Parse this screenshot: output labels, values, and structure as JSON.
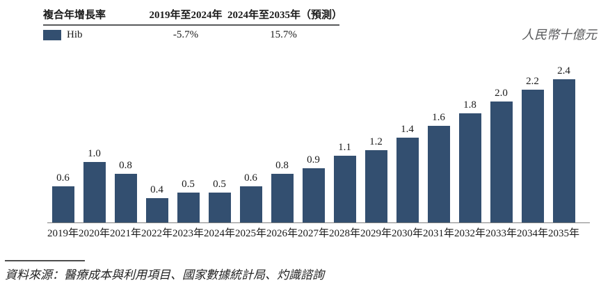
{
  "cagr_table": {
    "title": "複合年增長率",
    "col1": "2019年至2024年",
    "col2": "2024年至2035年（預測）",
    "series_label": "Hib",
    "value1": "-5.7%",
    "value2": "15.7%"
  },
  "unit_label": "人民幣十億元",
  "source": "資料來源：醫療成本與利用項目、國家數據統計局、灼識諮詢",
  "colors": {
    "bar": "#334f70",
    "axis": "#7f7f7f",
    "unit_text": "#58595b"
  },
  "chart_data": {
    "type": "bar",
    "series_name": "Hib",
    "categories": [
      "2019年",
      "2020年",
      "2021年",
      "2022年",
      "2023年",
      "2024年",
      "2025年",
      "2026年",
      "2027年",
      "2028年",
      "2029年",
      "2030年",
      "2031年",
      "2032年",
      "2033年",
      "2034年",
      "2035年"
    ],
    "values": [
      0.6,
      1.0,
      0.8,
      0.4,
      0.5,
      0.5,
      0.6,
      0.8,
      0.9,
      1.1,
      1.2,
      1.4,
      1.6,
      1.8,
      2.0,
      2.2,
      2.4
    ],
    "value_labels": [
      "0.6",
      "1.0",
      "0.8",
      "0.4",
      "0.5",
      "0.5",
      "0.6",
      "0.8",
      "0.9",
      "1.1",
      "1.2",
      "1.4",
      "1.6",
      "1.8",
      "2.0",
      "2.2",
      "2.4"
    ],
    "title": "",
    "xlabel": "",
    "ylabel": "人民幣十億元",
    "ylim": [
      0,
      2.6
    ],
    "grid": false,
    "data_labels": true,
    "legend_position": "top-left-table",
    "cagr_2019_2024": "-5.7%",
    "cagr_2024_2035_forecast": "15.7%"
  }
}
